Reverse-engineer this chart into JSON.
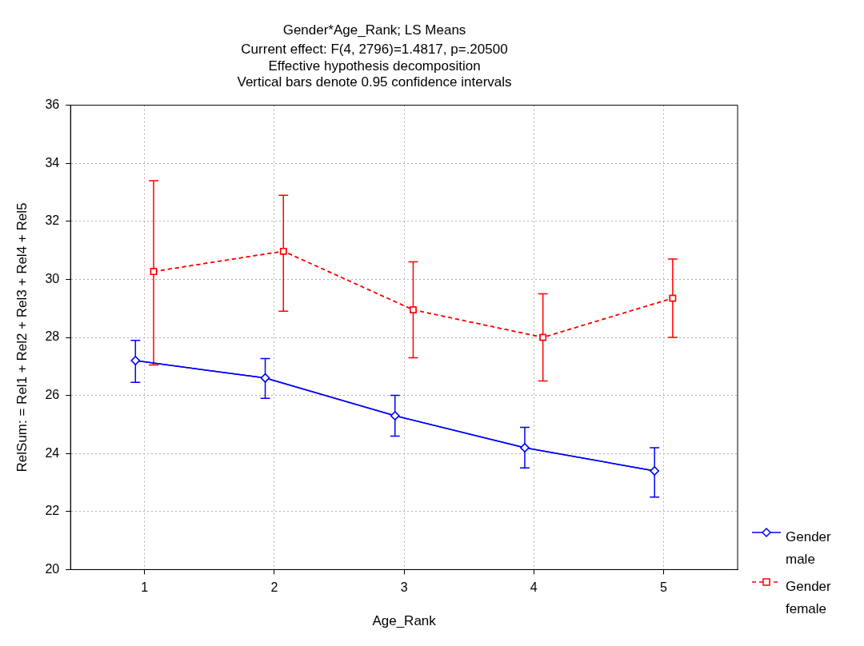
{
  "chart_data": {
    "type": "line",
    "title": "Gender*Age_Rank; LS Means",
    "subtitle": "Current effect: F(4, 2796)=1.4817, p=.20500",
    "annotations": [
      "Effective hypothesis decomposition",
      "Vertical bars denote 0.95 confidence intervals"
    ],
    "xlabel": "Age_Rank",
    "ylabel": "RelSum: = Rel1 + Rel2 + Rel3 + Rel4 + Rel5",
    "xlim": [
      0.43,
      5.57
    ],
    "xticks": [
      1,
      2,
      3,
      4,
      5
    ],
    "ylim": [
      20,
      36
    ],
    "yticks": [
      20,
      22,
      24,
      26,
      28,
      30,
      32,
      34,
      36
    ],
    "grid": true,
    "legend": "right",
    "series": [
      {
        "name": "Gender male",
        "color": "#0000ff",
        "marker": "diamond",
        "line_style": "solid",
        "x": [
          0.93,
          1.93,
          2.93,
          3.93,
          4.93
        ],
        "values": [
          27.2,
          26.6,
          25.3,
          24.2,
          23.4
        ],
        "errors": [
          [
            26.45,
            27.9
          ],
          [
            25.9,
            27.27
          ],
          [
            24.6,
            26.0
          ],
          [
            23.5,
            24.9
          ],
          [
            22.5,
            24.2
          ]
        ]
      },
      {
        "name": "Gender female",
        "color": "#ff0000",
        "marker": "square",
        "line_style": "dashed",
        "x": [
          1.07,
          2.07,
          3.07,
          4.07,
          5.07
        ],
        "values": [
          30.27,
          30.97,
          28.95,
          28.0,
          29.35
        ],
        "errors": [
          [
            27.05,
            33.4
          ],
          [
            28.9,
            32.9
          ],
          [
            27.3,
            30.6
          ],
          [
            26.5,
            29.5
          ],
          [
            28.0,
            30.7
          ]
        ]
      }
    ]
  }
}
